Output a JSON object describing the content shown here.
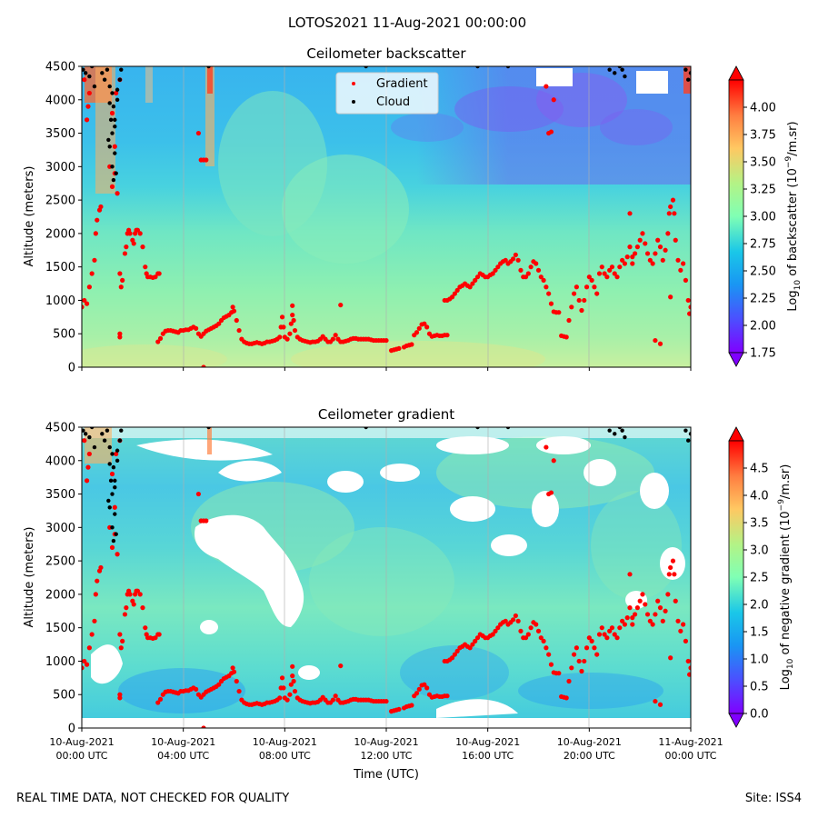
{
  "suptitle": "LOTOS2021 11-Aug-2021 00:00:00",
  "footer": {
    "left": "REAL TIME DATA, NOT CHECKED FOR QUALITY",
    "right": "Site: ISS4"
  },
  "x_axis": {
    "label": "Time (UTC)",
    "ticks": [
      {
        "hour": 0,
        "date": "10-Aug-2021",
        "time": "00:00 UTC"
      },
      {
        "hour": 4,
        "date": "10-Aug-2021",
        "time": "04:00 UTC"
      },
      {
        "hour": 8,
        "date": "10-Aug-2021",
        "time": "08:00 UTC"
      },
      {
        "hour": 12,
        "date": "10-Aug-2021",
        "time": "12:00 UTC"
      },
      {
        "hour": 16,
        "date": "10-Aug-2021",
        "time": "16:00 UTC"
      },
      {
        "hour": 20,
        "date": "10-Aug-2021",
        "time": "20:00 UTC"
      },
      {
        "hour": 24,
        "date": "11-Aug-2021",
        "time": "00:00 UTC"
      }
    ]
  },
  "legend": {
    "gradient": "Gradient",
    "cloud": "Cloud"
  },
  "chart_data": [
    {
      "type": "heatmap",
      "title": "Ceilometer backscatter",
      "ylabel": "Altitude (meters)",
      "ylim": [
        0,
        4500
      ],
      "xlim_hours": [
        0,
        24
      ],
      "yticks": [
        0,
        500,
        1000,
        1500,
        2000,
        2500,
        3000,
        3500,
        4000,
        4500
      ],
      "colorbar": {
        "label_parts": {
          "pre": "Log",
          "sub": "10",
          "mid": " of backscatter (10",
          "sup": "−9",
          "post": "/m.sr)"
        },
        "range": [
          1.75,
          4.25
        ],
        "ticks": [
          "1.75",
          "2.00",
          "2.25",
          "2.50",
          "2.75",
          "3.00",
          "3.25",
          "3.50",
          "3.75",
          "4.00"
        ]
      }
    },
    {
      "type": "heatmap",
      "title": "Ceilometer gradient",
      "ylabel": "Altitude (meters)",
      "ylim": [
        0,
        4500
      ],
      "xlim_hours": [
        0,
        24
      ],
      "yticks": [
        0,
        500,
        1000,
        1500,
        2000,
        2500,
        3000,
        3500,
        4000,
        4500
      ],
      "colorbar": {
        "label_parts": {
          "pre": "Log",
          "sub": "10",
          "mid": " of negative gradient (10",
          "sup": "−9",
          "post": "/m.sr)"
        },
        "range": [
          0.0,
          5.0
        ],
        "ticks": [
          "0.0",
          "0.5",
          "1.0",
          "1.5",
          "2.0",
          "2.5",
          "3.0",
          "3.5",
          "4.0",
          "4.5"
        ]
      }
    }
  ],
  "gradient_series": {
    "name": "Gradient",
    "color": "#ff0000",
    "points": [
      [
        0.0,
        900
      ],
      [
        0.1,
        1000
      ],
      [
        0.2,
        950
      ],
      [
        0.3,
        1200
      ],
      [
        0.4,
        1400
      ],
      [
        0.5,
        1600
      ],
      [
        0.55,
        2000
      ],
      [
        0.6,
        2200
      ],
      [
        0.7,
        2350
      ],
      [
        0.75,
        2400
      ],
      [
        0.2,
        3700
      ],
      [
        0.25,
        3900
      ],
      [
        0.3,
        4100
      ],
      [
        0.1,
        4300
      ],
      [
        1.1,
        3000
      ],
      [
        1.2,
        2700
      ],
      [
        1.3,
        2900
      ],
      [
        1.4,
        2600
      ],
      [
        1.3,
        3300
      ],
      [
        1.2,
        3800
      ],
      [
        1.35,
        4100
      ],
      [
        1.5,
        4300
      ],
      [
        1.5,
        1400
      ],
      [
        1.55,
        1200
      ],
      [
        1.6,
        1300
      ],
      [
        1.5,
        450
      ],
      [
        1.5,
        500
      ],
      [
        1.7,
        1700
      ],
      [
        1.75,
        1800
      ],
      [
        1.8,
        2000
      ],
      [
        1.85,
        2050
      ],
      [
        1.9,
        2000
      ],
      [
        2.0,
        1900
      ],
      [
        2.05,
        1850
      ],
      [
        2.1,
        2000
      ],
      [
        2.15,
        2050
      ],
      [
        2.2,
        2050
      ],
      [
        2.3,
        2000
      ],
      [
        2.4,
        1800
      ],
      [
        2.5,
        1500
      ],
      [
        2.55,
        1400
      ],
      [
        2.6,
        1350
      ],
      [
        2.7,
        1350
      ],
      [
        2.8,
        1340
      ],
      [
        2.9,
        1350
      ],
      [
        3.0,
        1400
      ],
      [
        3.05,
        1400
      ],
      [
        3.0,
        380
      ],
      [
        3.1,
        430
      ],
      [
        3.2,
        500
      ],
      [
        3.3,
        540
      ],
      [
        3.4,
        550
      ],
      [
        3.5,
        550
      ],
      [
        3.6,
        540
      ],
      [
        3.7,
        530
      ],
      [
        3.8,
        520
      ],
      [
        3.9,
        550
      ],
      [
        4.0,
        550
      ],
      [
        4.1,
        560
      ],
      [
        4.2,
        560
      ],
      [
        4.3,
        580
      ],
      [
        4.4,
        600
      ],
      [
        4.5,
        580
      ],
      [
        4.6,
        500
      ],
      [
        4.7,
        460
      ],
      [
        4.8,
        500
      ],
      [
        4.9,
        540
      ],
      [
        5.0,
        560
      ],
      [
        5.1,
        580
      ],
      [
        5.2,
        600
      ],
      [
        5.3,
        620
      ],
      [
        5.4,
        650
      ],
      [
        5.5,
        700
      ],
      [
        5.6,
        740
      ],
      [
        5.7,
        760
      ],
      [
        5.8,
        780
      ],
      [
        5.9,
        820
      ],
      [
        5.95,
        900
      ],
      [
        6.0,
        840
      ],
      [
        6.1,
        700
      ],
      [
        6.2,
        550
      ],
      [
        6.3,
        420
      ],
      [
        6.4,
        380
      ],
      [
        6.5,
        360
      ],
      [
        6.6,
        350
      ],
      [
        6.7,
        350
      ],
      [
        6.8,
        360
      ],
      [
        6.9,
        370
      ],
      [
        7.0,
        360
      ],
      [
        7.1,
        350
      ],
      [
        7.2,
        360
      ],
      [
        7.3,
        380
      ],
      [
        7.4,
        380
      ],
      [
        7.5,
        390
      ],
      [
        7.6,
        400
      ],
      [
        7.7,
        420
      ],
      [
        7.8,
        450
      ],
      [
        7.85,
        600
      ],
      [
        7.9,
        750
      ],
      [
        7.95,
        600
      ],
      [
        8.0,
        450
      ],
      [
        8.1,
        420
      ],
      [
        8.2,
        500
      ],
      [
        8.25,
        650
      ],
      [
        8.3,
        780
      ],
      [
        8.35,
        700
      ],
      [
        8.4,
        550
      ],
      [
        8.5,
        450
      ],
      [
        8.6,
        420
      ],
      [
        8.7,
        400
      ],
      [
        8.8,
        390
      ],
      [
        8.9,
        380
      ],
      [
        9.0,
        370
      ],
      [
        9.1,
        380
      ],
      [
        9.2,
        380
      ],
      [
        9.3,
        390
      ],
      [
        9.4,
        420
      ],
      [
        9.5,
        460
      ],
      [
        9.6,
        420
      ],
      [
        9.7,
        380
      ],
      [
        9.8,
        380
      ],
      [
        9.9,
        420
      ],
      [
        10.0,
        480
      ],
      [
        10.1,
        420
      ],
      [
        10.2,
        380
      ],
      [
        10.3,
        380
      ],
      [
        10.4,
        390
      ],
      [
        10.5,
        400
      ],
      [
        10.6,
        420
      ],
      [
        10.7,
        430
      ],
      [
        10.8,
        430
      ],
      [
        10.9,
        420
      ],
      [
        11.0,
        420
      ],
      [
        11.1,
        420
      ],
      [
        11.2,
        420
      ],
      [
        11.3,
        420
      ],
      [
        11.4,
        410
      ],
      [
        11.5,
        400
      ],
      [
        11.6,
        400
      ],
      [
        11.7,
        400
      ],
      [
        11.8,
        400
      ],
      [
        11.9,
        400
      ],
      [
        12.0,
        400
      ],
      [
        4.7,
        3100
      ],
      [
        4.8,
        3100
      ],
      [
        4.9,
        3100
      ],
      [
        4.6,
        3500
      ],
      [
        4.8,
        0
      ],
      [
        8.3,
        920
      ],
      [
        10.2,
        930
      ],
      [
        12.2,
        250
      ],
      [
        12.3,
        260
      ],
      [
        12.4,
        270
      ],
      [
        12.5,
        280
      ],
      [
        12.7,
        300
      ],
      [
        12.8,
        320
      ],
      [
        12.9,
        330
      ],
      [
        13.0,
        340
      ],
      [
        13.1,
        480
      ],
      [
        13.2,
        520
      ],
      [
        13.3,
        580
      ],
      [
        13.4,
        640
      ],
      [
        13.5,
        650
      ],
      [
        13.6,
        600
      ],
      [
        13.7,
        500
      ],
      [
        13.8,
        460
      ],
      [
        13.9,
        470
      ],
      [
        14.0,
        480
      ],
      [
        14.1,
        470
      ],
      [
        14.2,
        470
      ],
      [
        14.3,
        480
      ],
      [
        14.4,
        480
      ],
      [
        14.3,
        1000
      ],
      [
        14.4,
        1000
      ],
      [
        14.5,
        1020
      ],
      [
        14.6,
        1050
      ],
      [
        14.7,
        1100
      ],
      [
        14.8,
        1150
      ],
      [
        14.9,
        1200
      ],
      [
        15.0,
        1220
      ],
      [
        15.1,
        1250
      ],
      [
        15.2,
        1220
      ],
      [
        15.3,
        1200
      ],
      [
        15.4,
        1250
      ],
      [
        15.5,
        1300
      ],
      [
        15.6,
        1350
      ],
      [
        15.7,
        1400
      ],
      [
        15.8,
        1380
      ],
      [
        15.9,
        1350
      ],
      [
        16.0,
        1350
      ],
      [
        16.1,
        1380
      ],
      [
        16.2,
        1400
      ],
      [
        16.3,
        1450
      ],
      [
        16.4,
        1500
      ],
      [
        16.5,
        1550
      ],
      [
        16.6,
        1580
      ],
      [
        16.7,
        1600
      ],
      [
        16.8,
        1550
      ],
      [
        16.9,
        1580
      ],
      [
        17.0,
        1620
      ],
      [
        17.1,
        1680
      ],
      [
        17.2,
        1600
      ],
      [
        17.3,
        1450
      ],
      [
        17.4,
        1350
      ],
      [
        17.5,
        1350
      ],
      [
        17.6,
        1400
      ],
      [
        17.7,
        1500
      ],
      [
        17.8,
        1580
      ],
      [
        17.9,
        1550
      ],
      [
        18.0,
        1450
      ],
      [
        18.1,
        1350
      ],
      [
        18.2,
        1300
      ],
      [
        18.3,
        1200
      ],
      [
        18.4,
        1100
      ],
      [
        18.5,
        950
      ],
      [
        18.6,
        830
      ],
      [
        18.7,
        820
      ],
      [
        18.8,
        820
      ],
      [
        18.9,
        470
      ],
      [
        19.0,
        460
      ],
      [
        19.1,
        450
      ],
      [
        18.4,
        3500
      ],
      [
        18.5,
        3520
      ],
      [
        18.6,
        4000
      ],
      [
        18.3,
        4200
      ],
      [
        19.2,
        700
      ],
      [
        19.3,
        900
      ],
      [
        19.4,
        1100
      ],
      [
        19.5,
        1200
      ],
      [
        19.6,
        1000
      ],
      [
        19.7,
        850
      ],
      [
        19.8,
        1000
      ],
      [
        19.9,
        1200
      ],
      [
        20.0,
        1350
      ],
      [
        20.1,
        1300
      ],
      [
        20.2,
        1200
      ],
      [
        20.3,
        1100
      ],
      [
        20.4,
        1400
      ],
      [
        20.5,
        1500
      ],
      [
        20.6,
        1400
      ],
      [
        20.7,
        1350
      ],
      [
        20.8,
        1450
      ],
      [
        20.9,
        1500
      ],
      [
        21.0,
        1400
      ],
      [
        21.1,
        1350
      ],
      [
        21.2,
        1500
      ],
      [
        21.3,
        1600
      ],
      [
        21.4,
        1550
      ],
      [
        21.5,
        1650
      ],
      [
        21.6,
        1800
      ],
      [
        21.7,
        1650
      ],
      [
        21.8,
        1700
      ],
      [
        21.9,
        1800
      ],
      [
        22.0,
        1900
      ],
      [
        22.1,
        2000
      ],
      [
        22.2,
        1850
      ],
      [
        22.3,
        1700
      ],
      [
        22.4,
        1600
      ],
      [
        22.5,
        1550
      ],
      [
        22.6,
        1700
      ],
      [
        22.7,
        1900
      ],
      [
        22.8,
        1800
      ],
      [
        22.9,
        1600
      ],
      [
        23.0,
        1750
      ],
      [
        23.1,
        2000
      ],
      [
        23.15,
        2300
      ],
      [
        23.2,
        2400
      ],
      [
        23.3,
        2500
      ],
      [
        23.35,
        2300
      ],
      [
        23.4,
        1900
      ],
      [
        23.5,
        1600
      ],
      [
        23.6,
        1450
      ],
      [
        23.7,
        1550
      ],
      [
        23.8,
        1300
      ],
      [
        23.9,
        1000
      ],
      [
        23.95,
        800
      ],
      [
        24.0,
        900
      ],
      [
        21.7,
        1550
      ],
      [
        22.6,
        400
      ],
      [
        22.8,
        350
      ],
      [
        23.2,
        1050
      ],
      [
        21.6,
        2300
      ]
    ]
  },
  "cloud_series": {
    "name": "Cloud",
    "color": "#000000",
    "points": [
      [
        0.05,
        4450
      ],
      [
        0.15,
        4400
      ],
      [
        0.3,
        4350
      ],
      [
        0.4,
        4500
      ],
      [
        0.5,
        4200
      ],
      [
        0.8,
        4400
      ],
      [
        0.9,
        4300
      ],
      [
        1.0,
        4450
      ],
      [
        1.1,
        4200
      ],
      [
        1.2,
        4100
      ],
      [
        1.25,
        3900
      ],
      [
        1.15,
        3700
      ],
      [
        1.2,
        3500
      ],
      [
        1.1,
        3300
      ],
      [
        1.3,
        3200
      ],
      [
        1.2,
        3000
      ],
      [
        1.35,
        2900
      ],
      [
        1.25,
        2800
      ],
      [
        1.05,
        3400
      ],
      [
        1.3,
        3600
      ],
      [
        1.4,
        4000
      ],
      [
        1.5,
        4300
      ],
      [
        1.55,
        4450
      ],
      [
        1.3,
        3700
      ],
      [
        1.4,
        4150
      ],
      [
        1.1,
        3950
      ],
      [
        5.0,
        4500
      ],
      [
        20.8,
        4450
      ],
      [
        21.0,
        4400
      ],
      [
        21.2,
        4500
      ],
      [
        21.3,
        4450
      ],
      [
        21.4,
        4350
      ],
      [
        23.8,
        4450
      ],
      [
        23.9,
        4300
      ],
      [
        24.0,
        4400
      ],
      [
        11.2,
        4500
      ],
      [
        15.6,
        4500
      ],
      [
        16.8,
        4500
      ]
    ]
  }
}
